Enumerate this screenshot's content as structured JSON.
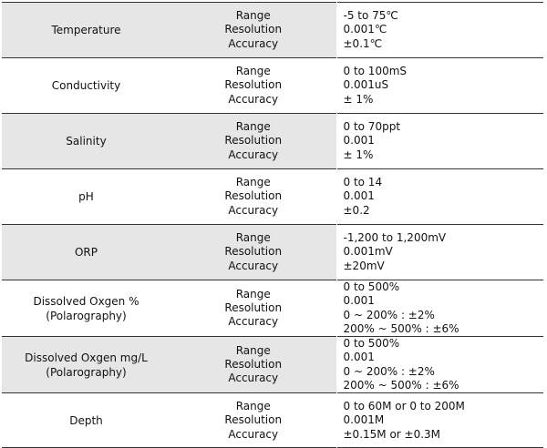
{
  "spec_rows": [
    {
      "parameter": [
        "Temperature"
      ],
      "labels": [
        "Range",
        "Resolution",
        "Accuracy"
      ],
      "values": [
        "-5 to 75℃",
        "0.001℃",
        "±0.1℃"
      ]
    },
    {
      "parameter": [
        "Conductivity"
      ],
      "labels": [
        "Range",
        "Resolution",
        "Accuracy"
      ],
      "values": [
        "0 to 100mS",
        "0.001uS",
        "± 1%"
      ]
    },
    {
      "parameter": [
        "Salinity"
      ],
      "labels": [
        "Range",
        "Resolution",
        "Accuracy"
      ],
      "values": [
        "0 to 70ppt",
        "0.001",
        "± 1%"
      ]
    },
    {
      "parameter": [
        "pH"
      ],
      "labels": [
        "Range",
        "Resolution",
        "Accuracy"
      ],
      "values": [
        "0 to 14",
        "0.001",
        "±0.2"
      ]
    },
    {
      "parameter": [
        "ORP"
      ],
      "labels": [
        "Range",
        "Resolution",
        "Accuracy"
      ],
      "values": [
        "-1,200 to 1,200mV",
        "0.001mV",
        "±20mV"
      ]
    },
    {
      "parameter": [
        "Dissolved Oxgen %",
        "(Polarography)"
      ],
      "labels": [
        "Range",
        "Resolution",
        "Accuracy"
      ],
      "values": [
        "0 to 500%",
        "0.001",
        "0 ~ 200% : ±2%",
        "200% ~ 500% : ±6%"
      ]
    },
    {
      "parameter": [
        "Dissolved Oxgen mg/L",
        "(Polarography)"
      ],
      "labels": [
        "Range",
        "Resolution",
        "Accuracy"
      ],
      "values": [
        "0 to 500%",
        "0.001",
        "0 ~ 200% : ±2%",
        "200% ~ 500% : ±6%"
      ]
    },
    {
      "parameter": [
        "Depth"
      ],
      "labels": [
        "Range",
        "Resolution",
        "Accuracy"
      ],
      "values": [
        "0 to 60M or 0 to 200M",
        "0.001M",
        "±0.15M or ±0.3M"
      ]
    }
  ]
}
